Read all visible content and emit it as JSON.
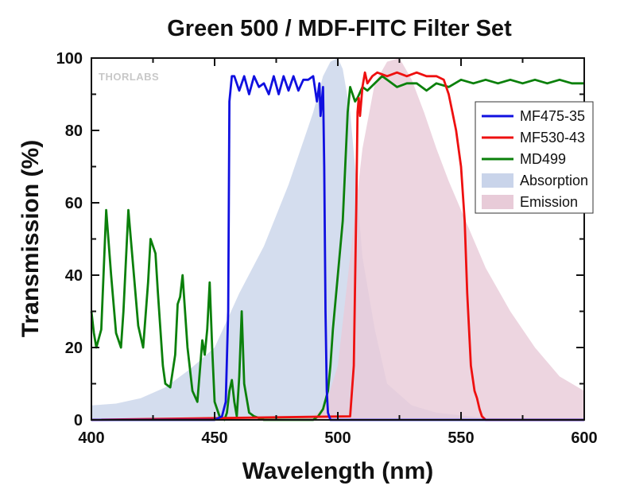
{
  "chart_data": {
    "type": "line",
    "title": "Green 500 / MDF-FITC Filter Set",
    "xlabel": "Wavelength (nm)",
    "ylabel": "Transmission (%)",
    "xlim": [
      400,
      600
    ],
    "ylim": [
      0,
      100
    ],
    "xticks": [
      "400",
      "450",
      "500",
      "550",
      "600"
    ],
    "yticks": [
      "0",
      "20",
      "40",
      "60",
      "80",
      "100"
    ],
    "grid": false,
    "legend_position": "right",
    "watermark": "THORLABS",
    "series": [
      {
        "name": "MF475-35",
        "kind": "line",
        "color": "#1010e0",
        "x": [
          400,
          450,
          453,
          454.5,
          455.5,
          456,
          457,
          458,
          460,
          462,
          464,
          466,
          468,
          470,
          472,
          474,
          476,
          478,
          480,
          482,
          484,
          486,
          488,
          490,
          491.5,
          492.5,
          493,
          494,
          494.5,
          495,
          495.5,
          496,
          497,
          500,
          600
        ],
        "y": [
          0,
          0,
          1,
          5,
          30,
          88,
          95,
          95,
          91,
          95,
          90,
          95,
          92,
          93,
          90,
          95,
          90,
          95,
          91,
          95,
          91,
          94,
          94,
          95,
          88,
          93,
          84,
          92,
          70,
          30,
          8,
          2,
          0,
          0,
          0
        ]
      },
      {
        "name": "MF530-43",
        "kind": "line",
        "color": "#ee1010",
        "x": [
          400,
          505,
          506.5,
          507.5,
          508,
          508.5,
          509,
          510,
          511,
          512,
          514,
          516,
          520,
          524,
          528,
          532,
          536,
          540,
          543,
          545,
          546.5,
          548,
          550,
          551.5,
          552.5,
          554,
          555.5,
          556.5,
          557.5,
          558.5,
          560,
          600
        ],
        "y": [
          0,
          1,
          15,
          60,
          85,
          89,
          84,
          92,
          96,
          93,
          95,
          96,
          95,
          96,
          95,
          96,
          95,
          95,
          94,
          90,
          85,
          80,
          70,
          55,
          35,
          15,
          8,
          6,
          3,
          1,
          0,
          0
        ]
      },
      {
        "name": "MD499",
        "kind": "line",
        "color": "#0b800b",
        "x": [
          400,
          401,
          402,
          404,
          406,
          408,
          410,
          412,
          413,
          415,
          417,
          419,
          421,
          423,
          424,
          425,
          426,
          427,
          428,
          429,
          430,
          432,
          434,
          435,
          436,
          437,
          439,
          441,
          443,
          445,
          446,
          447,
          448,
          449,
          450,
          451,
          452,
          454,
          455,
          456,
          457,
          458,
          459,
          460,
          461,
          462,
          464,
          466,
          470,
          475,
          480,
          485,
          488,
          490,
          492,
          494,
          496,
          497,
          498,
          500,
          502,
          503,
          504,
          505,
          506,
          507,
          508,
          510,
          512,
          515,
          518,
          520,
          524,
          528,
          532,
          536,
          540,
          545,
          550,
          555,
          560,
          565,
          570,
          575,
          580,
          585,
          590,
          595,
          600
        ],
        "y": [
          30,
          24,
          20,
          25,
          58,
          40,
          24,
          20,
          30,
          58,
          42,
          26,
          20,
          38,
          50,
          48,
          46,
          35,
          25,
          15,
          10,
          9,
          18,
          32,
          34,
          40,
          20,
          8,
          5,
          22,
          18,
          25,
          38,
          20,
          5,
          3,
          1,
          0,
          2,
          8,
          11,
          5,
          1,
          12,
          30,
          10,
          2,
          1,
          0,
          0,
          0,
          0,
          0,
          0,
          1,
          3,
          8,
          15,
          25,
          40,
          55,
          70,
          85,
          92,
          90,
          88,
          89,
          92,
          91,
          93,
          95,
          94,
          92,
          93,
          93,
          91,
          93,
          92,
          94,
          93,
          94,
          93,
          94,
          93,
          94,
          93,
          94,
          93,
          93
        ]
      },
      {
        "name": "Absorption",
        "kind": "area",
        "color": "#c9d4ea",
        "x": [
          400,
          410,
          420,
          430,
          440,
          450,
          460,
          470,
          480,
          485,
          490,
          494,
          497,
          500,
          502,
          505,
          507,
          510,
          515,
          520,
          530,
          540,
          560,
          600
        ],
        "y": [
          4,
          4.5,
          6,
          9,
          14,
          20,
          35,
          48,
          65,
          75,
          85,
          95,
          99,
          100,
          97,
          85,
          70,
          45,
          25,
          10,
          4,
          2,
          0.5,
          0
        ]
      },
      {
        "name": "Emission",
        "kind": "area",
        "color": "#e8cbd8",
        "x": [
          480,
          490,
          495,
          500,
          505,
          510,
          515,
          520,
          525,
          530,
          535,
          540,
          545,
          550,
          560,
          570,
          580,
          590,
          600
        ],
        "y": [
          0,
          1,
          4,
          15,
          45,
          75,
          93,
          99,
          100,
          94,
          85,
          75,
          66,
          58,
          42,
          30,
          20,
          12,
          8
        ]
      }
    ]
  }
}
